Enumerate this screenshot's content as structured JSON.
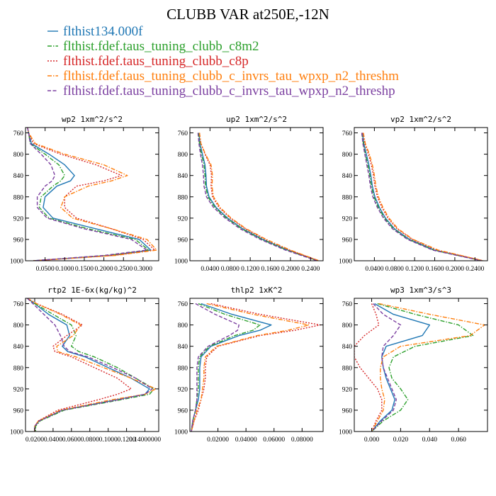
{
  "figure": {
    "title": "CLUBB VAR at250E,-12N",
    "legend": [
      {
        "name": "flthist134.000f",
        "color": "#1f77b4",
        "dash": "solid"
      },
      {
        "name": "flthist.fdef.taus_tuning_clubb_c8m2",
        "color": "#2ca02c",
        "dash": "dashdot"
      },
      {
        "name": "flthist.fdef.taus_tuning_clubb_c8p",
        "color": "#d62728",
        "dash": "dot"
      },
      {
        "name": "flthist.fdef.taus_tuning_clubb_c_invrs_tau_wpxp_n2_threshm",
        "color": "#ff7f0e",
        "dash": "dashdot"
      },
      {
        "name": "flthist.fdef.taus_tuning_clubb_c_invrs_tau_wpxp_n2_threshp",
        "color": "#7b3fa0",
        "dash": "dashed"
      }
    ]
  },
  "chart_data": [
    {
      "type": "line",
      "title": "wp2  1xm^2/s^2",
      "xlim": [
        0.0,
        0.34
      ],
      "ylim": [
        1000,
        750
      ],
      "xticks": [
        0.05,
        0.1,
        0.15,
        0.2,
        0.25,
        0.3
      ],
      "xtick_labels": [
        "0.0500",
        "0.1000",
        "0.1500",
        "0.2000",
        "0.2500",
        "0.3000"
      ],
      "yticks": [
        760,
        800,
        840,
        880,
        920,
        960,
        1000
      ],
      "y": [
        750,
        760,
        780,
        800,
        820,
        840,
        850,
        860,
        880,
        900,
        920,
        940,
        960,
        980,
        990,
        1000
      ],
      "series": [
        {
          "name": "flthist134.000f",
          "values": [
            0.005,
            0.008,
            0.015,
            0.06,
            0.1,
            0.125,
            0.115,
            0.08,
            0.05,
            0.045,
            0.07,
            0.18,
            0.29,
            0.32,
            0.22,
            0.02
          ]
        },
        {
          "name": "flthist.fdef.taus_tuning_clubb_c8m2",
          "values": [
            0.005,
            0.008,
            0.012,
            0.05,
            0.085,
            0.1,
            0.09,
            0.07,
            0.04,
            0.035,
            0.06,
            0.16,
            0.28,
            0.315,
            0.21,
            0.02
          ]
        },
        {
          "name": "flthist.fdef.taus_tuning_clubb_c8p",
          "values": [
            0.005,
            0.008,
            0.02,
            0.09,
            0.18,
            0.245,
            0.2,
            0.13,
            0.1,
            0.1,
            0.13,
            0.22,
            0.3,
            0.33,
            0.22,
            0.02
          ]
        },
        {
          "name": "flthist.fdef.taus_tuning_clubb_c_invrs_tau_wpxp_n2_threshm",
          "values": [
            0.005,
            0.008,
            0.025,
            0.1,
            0.2,
            0.26,
            0.22,
            0.16,
            0.1,
            0.09,
            0.12,
            0.22,
            0.31,
            0.335,
            0.23,
            0.02
          ]
        },
        {
          "name": "flthist.fdef.taus_tuning_clubb_c_invrs_tau_wpxp_n2_threshp",
          "values": [
            0.005,
            0.008,
            0.012,
            0.04,
            0.065,
            0.075,
            0.068,
            0.05,
            0.03,
            0.03,
            0.055,
            0.15,
            0.27,
            0.31,
            0.2,
            0.02
          ]
        }
      ]
    },
    {
      "type": "line",
      "title": "up2  1xm^2/s^2",
      "xlim": [
        0.0,
        0.265
      ],
      "ylim": [
        1000,
        750
      ],
      "xticks": [
        0.04,
        0.08,
        0.12,
        0.16,
        0.2,
        0.24
      ],
      "xtick_labels": [
        "0.0400",
        "0.0800",
        "0.1200",
        "0.1600",
        "0.2000",
        "0.2400"
      ],
      "yticks": [
        760,
        800,
        840,
        880,
        920,
        960,
        1000
      ],
      "y": [
        760,
        780,
        800,
        820,
        840,
        860,
        880,
        900,
        920,
        940,
        960,
        980,
        1000
      ],
      "series": [
        {
          "name": "flthist134.000f",
          "values": [
            0.018,
            0.02,
            0.025,
            0.03,
            0.032,
            0.033,
            0.038,
            0.052,
            0.075,
            0.105,
            0.145,
            0.195,
            0.255
          ]
        },
        {
          "name": "flthist.fdef.taus_tuning_clubb_c8m2",
          "values": [
            0.017,
            0.019,
            0.023,
            0.028,
            0.03,
            0.031,
            0.036,
            0.05,
            0.073,
            0.103,
            0.143,
            0.193,
            0.254
          ]
        },
        {
          "name": "flthist.fdef.taus_tuning_clubb_c8p",
          "values": [
            0.019,
            0.022,
            0.03,
            0.04,
            0.043,
            0.042,
            0.045,
            0.058,
            0.08,
            0.11,
            0.15,
            0.198,
            0.256
          ]
        },
        {
          "name": "flthist.fdef.taus_tuning_clubb_c_invrs_tau_wpxp_n2_threshm",
          "values": [
            0.019,
            0.022,
            0.031,
            0.042,
            0.045,
            0.044,
            0.047,
            0.06,
            0.082,
            0.112,
            0.152,
            0.2,
            0.257
          ]
        },
        {
          "name": "flthist.fdef.taus_tuning_clubb_c_invrs_tau_wpxp_n2_threshp",
          "values": [
            0.016,
            0.018,
            0.021,
            0.025,
            0.027,
            0.028,
            0.033,
            0.047,
            0.07,
            0.1,
            0.14,
            0.19,
            0.253
          ]
        }
      ]
    },
    {
      "type": "line",
      "title": "vp2  1xm^2/s^2",
      "xlim": [
        0.0,
        0.265
      ],
      "ylim": [
        1000,
        750
      ],
      "xticks": [
        0.04,
        0.08,
        0.12,
        0.16,
        0.2,
        0.24
      ],
      "xtick_labels": [
        "0.0400",
        "0.0800",
        "0.1200",
        "0.1600",
        "0.2000",
        "0.2400"
      ],
      "yticks": [
        760,
        800,
        840,
        880,
        920,
        960,
        1000
      ],
      "y": [
        760,
        780,
        800,
        820,
        840,
        860,
        880,
        900,
        920,
        940,
        960,
        980,
        1000
      ],
      "series": [
        {
          "name": "flthist134.000f",
          "values": [
            0.016,
            0.019,
            0.024,
            0.029,
            0.033,
            0.036,
            0.041,
            0.05,
            0.062,
            0.08,
            0.11,
            0.16,
            0.255
          ]
        },
        {
          "name": "flthist.fdef.taus_tuning_clubb_c8m2",
          "values": [
            0.015,
            0.018,
            0.022,
            0.027,
            0.031,
            0.034,
            0.039,
            0.048,
            0.06,
            0.078,
            0.108,
            0.158,
            0.254
          ]
        },
        {
          "name": "flthist.fdef.taus_tuning_clubb_c8p",
          "values": [
            0.017,
            0.021,
            0.028,
            0.034,
            0.038,
            0.041,
            0.046,
            0.055,
            0.067,
            0.085,
            0.115,
            0.165,
            0.256
          ]
        },
        {
          "name": "flthist.fdef.taus_tuning_clubb_c_invrs_tau_wpxp_n2_threshm",
          "values": [
            0.018,
            0.022,
            0.03,
            0.036,
            0.04,
            0.043,
            0.048,
            0.057,
            0.069,
            0.087,
            0.117,
            0.167,
            0.257
          ]
        },
        {
          "name": "flthist.fdef.taus_tuning_clubb_c_invrs_tau_wpxp_n2_threshp",
          "values": [
            0.015,
            0.017,
            0.021,
            0.025,
            0.029,
            0.032,
            0.037,
            0.046,
            0.058,
            0.076,
            0.106,
            0.156,
            0.253
          ]
        }
      ]
    },
    {
      "type": "line",
      "title": "rtp2  1E-6x(kg/kg)^2",
      "xlim": [
        0.01,
        0.155
      ],
      "ylim": [
        1000,
        750
      ],
      "xticks": [
        0.02,
        0.04,
        0.06,
        0.08,
        0.1,
        0.12,
        0.14
      ],
      "xtick_labels": [
        "0.0200",
        "0.0400",
        "0.0600",
        "0.0800",
        "0.1000",
        "0.1200",
        "0.14000000"
      ],
      "yticks": [
        760,
        800,
        840,
        880,
        920,
        960,
        1000
      ],
      "y": [
        750,
        760,
        780,
        800,
        820,
        840,
        850,
        860,
        880,
        900,
        920,
        930,
        940,
        960,
        980,
        990,
        1000
      ],
      "series": [
        {
          "name": "flthist134.000f",
          "values": [
            0.012,
            0.02,
            0.035,
            0.055,
            0.058,
            0.05,
            0.056,
            0.075,
            0.1,
            0.125,
            0.145,
            0.14,
            0.11,
            0.05,
            0.025,
            0.02,
            0.02
          ]
        },
        {
          "name": "flthist.fdef.taus_tuning_clubb_c8m2",
          "values": [
            0.012,
            0.02,
            0.04,
            0.06,
            0.065,
            0.06,
            0.068,
            0.085,
            0.11,
            0.13,
            0.15,
            0.145,
            0.115,
            0.052,
            0.026,
            0.021,
            0.021
          ]
        },
        {
          "name": "flthist.fdef.taus_tuning_clubb_c8p",
          "values": [
            0.012,
            0.022,
            0.05,
            0.072,
            0.055,
            0.04,
            0.042,
            0.06,
            0.085,
            0.11,
            0.125,
            0.11,
            0.09,
            0.045,
            0.024,
            0.02,
            0.02
          ]
        },
        {
          "name": "flthist.fdef.taus_tuning_clubb_c_invrs_tau_wpxp_n2_threshm",
          "values": [
            0.012,
            0.022,
            0.048,
            0.07,
            0.062,
            0.044,
            0.045,
            0.065,
            0.095,
            0.125,
            0.152,
            0.14,
            0.105,
            0.048,
            0.024,
            0.02,
            0.02
          ]
        },
        {
          "name": "flthist.fdef.taus_tuning_clubb_c_invrs_tau_wpxp_n2_threshp",
          "values": [
            0.012,
            0.018,
            0.03,
            0.042,
            0.048,
            0.052,
            0.058,
            0.078,
            0.105,
            0.13,
            0.148,
            0.14,
            0.112,
            0.05,
            0.025,
            0.02,
            0.02
          ]
        }
      ]
    },
    {
      "type": "line",
      "title": "thlp2  1xK^2",
      "xlim": [
        0.0,
        0.095
      ],
      "ylim": [
        1000,
        750
      ],
      "xticks": [
        0.02,
        0.04,
        0.06,
        0.08
      ],
      "xtick_labels": [
        "0.02000",
        "0.04000",
        "0.06000",
        "0.08000"
      ],
      "yticks": [
        760,
        800,
        840,
        880,
        920,
        960,
        1000
      ],
      "y": [
        760,
        780,
        800,
        810,
        820,
        840,
        860,
        880,
        900,
        920,
        940,
        960,
        980,
        1000
      ],
      "series": [
        {
          "name": "flthist134.000f",
          "values": [
            0.008,
            0.03,
            0.058,
            0.05,
            0.035,
            0.015,
            0.008,
            0.007,
            0.007,
            0.007,
            0.006,
            0.004,
            0.002,
            0.001
          ]
        },
        {
          "name": "flthist.fdef.taus_tuning_clubb_c8m2",
          "values": [
            0.006,
            0.025,
            0.05,
            0.045,
            0.032,
            0.014,
            0.007,
            0.006,
            0.006,
            0.006,
            0.005,
            0.004,
            0.002,
            0.001
          ]
        },
        {
          "name": "flthist.fdef.taus_tuning_clubb_c8p",
          "values": [
            0.015,
            0.05,
            0.093,
            0.075,
            0.05,
            0.02,
            0.012,
            0.011,
            0.011,
            0.01,
            0.008,
            0.006,
            0.003,
            0.001
          ]
        },
        {
          "name": "flthist.fdef.taus_tuning_clubb_c_invrs_tau_wpxp_n2_threshm",
          "values": [
            0.012,
            0.045,
            0.085,
            0.07,
            0.048,
            0.019,
            0.011,
            0.01,
            0.01,
            0.009,
            0.008,
            0.005,
            0.003,
            0.001
          ]
        },
        {
          "name": "flthist.fdef.taus_tuning_clubb_c_invrs_tau_wpxp_n2_threshp",
          "values": [
            0.004,
            0.018,
            0.035,
            0.034,
            0.028,
            0.013,
            0.006,
            0.005,
            0.005,
            0.005,
            0.005,
            0.004,
            0.002,
            0.001
          ]
        }
      ]
    },
    {
      "type": "line",
      "title": "wp3  1xm^3/s^3",
      "xlim": [
        -0.012,
        0.08
      ],
      "ylim": [
        1000,
        750
      ],
      "xticks": [
        0.0,
        0.02,
        0.04,
        0.06
      ],
      "xtick_labels": [
        "0.000",
        "0.020",
        "0.040",
        "0.060"
      ],
      "yticks": [
        760,
        800,
        840,
        880,
        920,
        960,
        1000
      ],
      "y": [
        760,
        780,
        800,
        820,
        840,
        860,
        880,
        900,
        920,
        940,
        960,
        980,
        1000
      ],
      "series": [
        {
          "name": "flthist134.000f",
          "values": [
            0.002,
            0.015,
            0.04,
            0.035,
            0.01,
            0.007,
            0.008,
            0.01,
            0.013,
            0.016,
            0.014,
            0.006,
            0.0
          ]
        },
        {
          "name": "flthist.fdef.taus_tuning_clubb_c8m2",
          "values": [
            0.004,
            0.03,
            0.06,
            0.07,
            0.03,
            0.015,
            0.012,
            0.014,
            0.02,
            0.025,
            0.02,
            0.008,
            0.0
          ]
        },
        {
          "name": "flthist.fdef.taus_tuning_clubb_c8p",
          "values": [
            0.0,
            0.003,
            0.005,
            -0.005,
            -0.012,
            -0.012,
            -0.008,
            -0.002,
            0.004,
            0.007,
            0.007,
            0.003,
            0.0
          ]
        },
        {
          "name": "flthist.fdef.taus_tuning_clubb_c_invrs_tau_wpxp_n2_threshm",
          "values": [
            0.005,
            0.04,
            0.078,
            0.068,
            0.02,
            0.008,
            0.006,
            0.006,
            0.007,
            0.009,
            0.008,
            0.004,
            0.0
          ]
        },
        {
          "name": "flthist.fdef.taus_tuning_clubb_c_invrs_tau_wpxp_n2_threshp",
          "values": [
            0.001,
            0.008,
            0.02,
            0.015,
            0.008,
            0.007,
            0.008,
            0.011,
            0.014,
            0.017,
            0.015,
            0.007,
            0.0
          ]
        }
      ]
    }
  ]
}
